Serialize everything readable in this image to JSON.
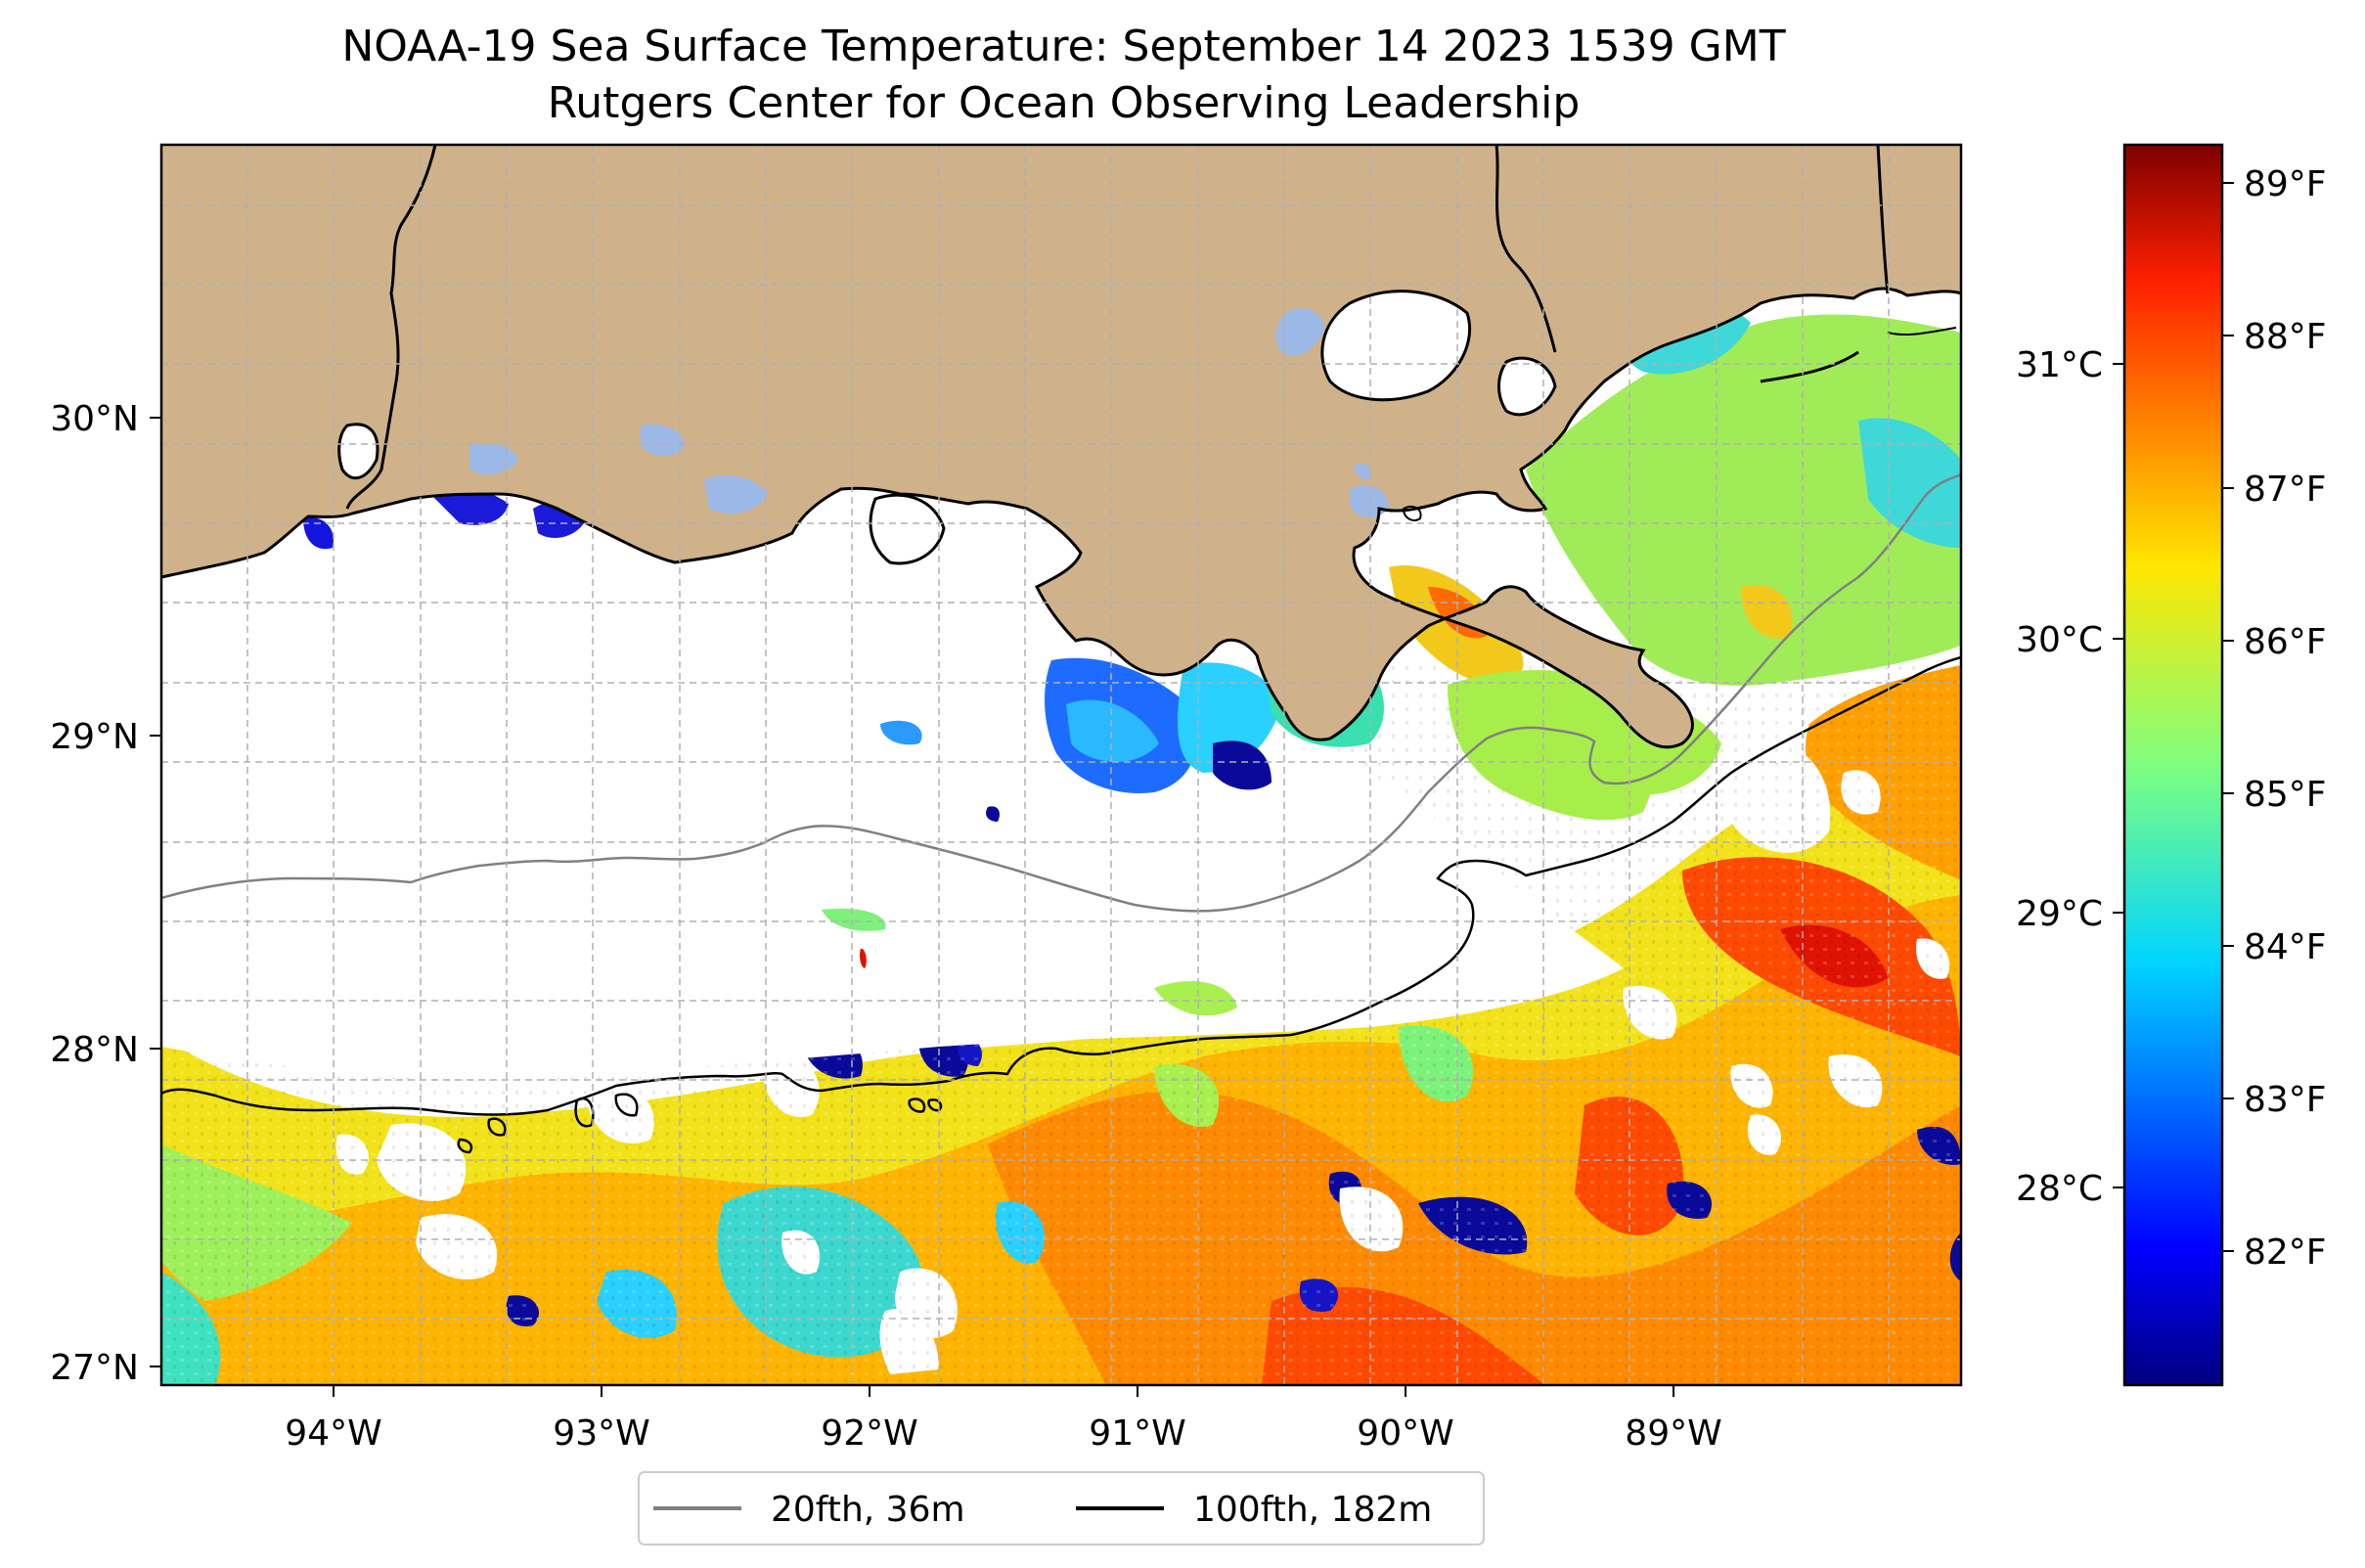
{
  "title": "NOAA-19 Sea Surface Temperature: September 14 2023 1539 GMT",
  "subtitle": "Rutgers Center for Ocean Observing Leadership",
  "map": {
    "lon_range": [
      -94.55,
      -88.2
    ],
    "lat_range": [
      26.95,
      30.85
    ],
    "lon_ticks": [
      "94°W",
      "93°W",
      "92°W",
      "91°W",
      "90°W",
      "89°W"
    ],
    "lat_ticks": [
      "27°N",
      "28°N",
      "29°N",
      "30°N"
    ],
    "grid": true,
    "land_color": "#cfb28a",
    "lake_color": "#9bb8e6"
  },
  "legend": {
    "placement": "bottom-center",
    "entries": [
      {
        "label": "20fth, 36m",
        "color": "#808080"
      },
      {
        "label": "100fth, 182m",
        "color": "#000000"
      }
    ]
  },
  "colorbar": {
    "colormap": "jet",
    "celsius_ticks": [
      "28°C",
      "29°C",
      "30°C",
      "31°C"
    ],
    "fahrenheit_ticks": [
      "82°F",
      "83°F",
      "84°F",
      "85°F",
      "86°F",
      "87°F",
      "88°F",
      "89°F"
    ],
    "range_f": [
      81.1,
      89.2
    ]
  }
}
